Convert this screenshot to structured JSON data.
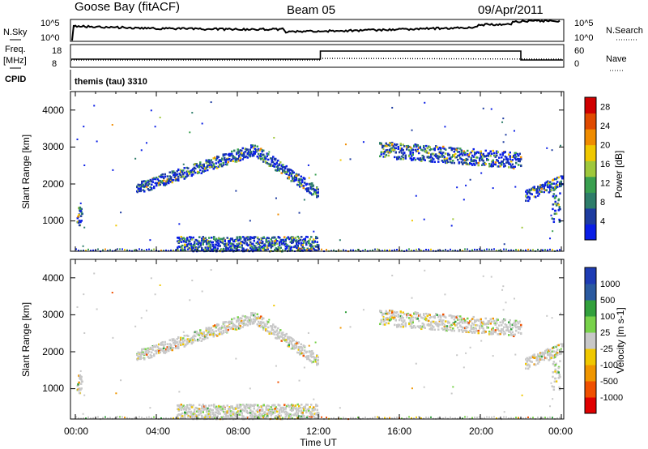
{
  "header": {
    "station": "Goose Bay (fitACF)",
    "beam": "Beam 05",
    "date": "09/Apr/2011"
  },
  "panels": {
    "nsky_label": "N.Sky",
    "nsky_ticks": [
      "10^5",
      "10^0"
    ],
    "nsearch_label": "N.Search",
    "nsearch_ticks": [
      "10^5",
      "10^0"
    ],
    "freq_label_1": "Freq.",
    "freq_label_2": "[MHz]",
    "freq_ticks": [
      "18",
      "8"
    ],
    "nave_label": "Nave",
    "nave_ticks": [
      "60",
      "0"
    ],
    "cpid_label": "CPID",
    "cpid_text": "themis (tau) 3310"
  },
  "colors": {
    "power": [
      "#0a1ee6",
      "#1e3ca0",
      "#2e7d6a",
      "#3aa050",
      "#9fc83c",
      "#f0c800",
      "#f08c00",
      "#e04a00",
      "#d00000"
    ],
    "velocity": [
      "#e00000",
      "#f05000",
      "#f09600",
      "#f0c800",
      "#c8c8c8",
      "#78d24a",
      "#32a03c",
      "#2a5aa0",
      "#1e3cb4"
    ]
  },
  "chart_data": [
    {
      "type": "heatmap",
      "title": "Power",
      "xlabel": "",
      "ylabel": "Slant Range [km]",
      "x_ticks": [
        "00:00",
        "04:00",
        "08:00",
        "12:00",
        "16:00",
        "20:00",
        "00:00"
      ],
      "y_ticks": [
        "1000",
        "2000",
        "3000",
        "4000"
      ],
      "ylim": [
        180,
        4500
      ],
      "xlim_hours": [
        0,
        24
      ],
      "colorbar_label": "Power [dB]",
      "colorbar_ticks": [
        "4",
        "8",
        "12",
        "16",
        "20",
        "24",
        "28"
      ],
      "colorbar_range": [
        0,
        30
      ],
      "echo_regions": [
        {
          "name": "arc",
          "start_h": 3.0,
          "end_h": 12.0,
          "range_start_km": 1900,
          "range_peak_km": 2950,
          "range_end_km": 1750,
          "peak_h": 8.8
        },
        {
          "name": "evening band",
          "start_h": 15.0,
          "end_h": 22.0,
          "range_start_km": 2950,
          "range_end_km": 2650
        },
        {
          "name": "dawn patch",
          "start_h": 22.2,
          "end_h": 24.0,
          "range_start_km": 1700,
          "range_end_km": 2100
        },
        {
          "name": "near ground scatter",
          "start_h": 5.0,
          "end_h": 12.0,
          "range_start_km": 200,
          "range_end_km": 600
        }
      ]
    },
    {
      "type": "heatmap",
      "title": "Velocity",
      "xlabel": "Time UT",
      "ylabel": "Slant Range [km]",
      "x_ticks": [
        "00:00",
        "04:00",
        "08:00",
        "12:00",
        "16:00",
        "20:00",
        "00:00"
      ],
      "y_ticks": [
        "1000",
        "2000",
        "3000",
        "4000"
      ],
      "ylim": [
        180,
        4500
      ],
      "xlim_hours": [
        0,
        24
      ],
      "colorbar_label": "Velocity [m s-1]",
      "colorbar_ticks": [
        "1000",
        "500",
        "100",
        "25",
        "-25",
        "-100",
        "-500",
        "-1000"
      ],
      "colorbar_range": [
        -1000,
        1000
      ]
    }
  ]
}
